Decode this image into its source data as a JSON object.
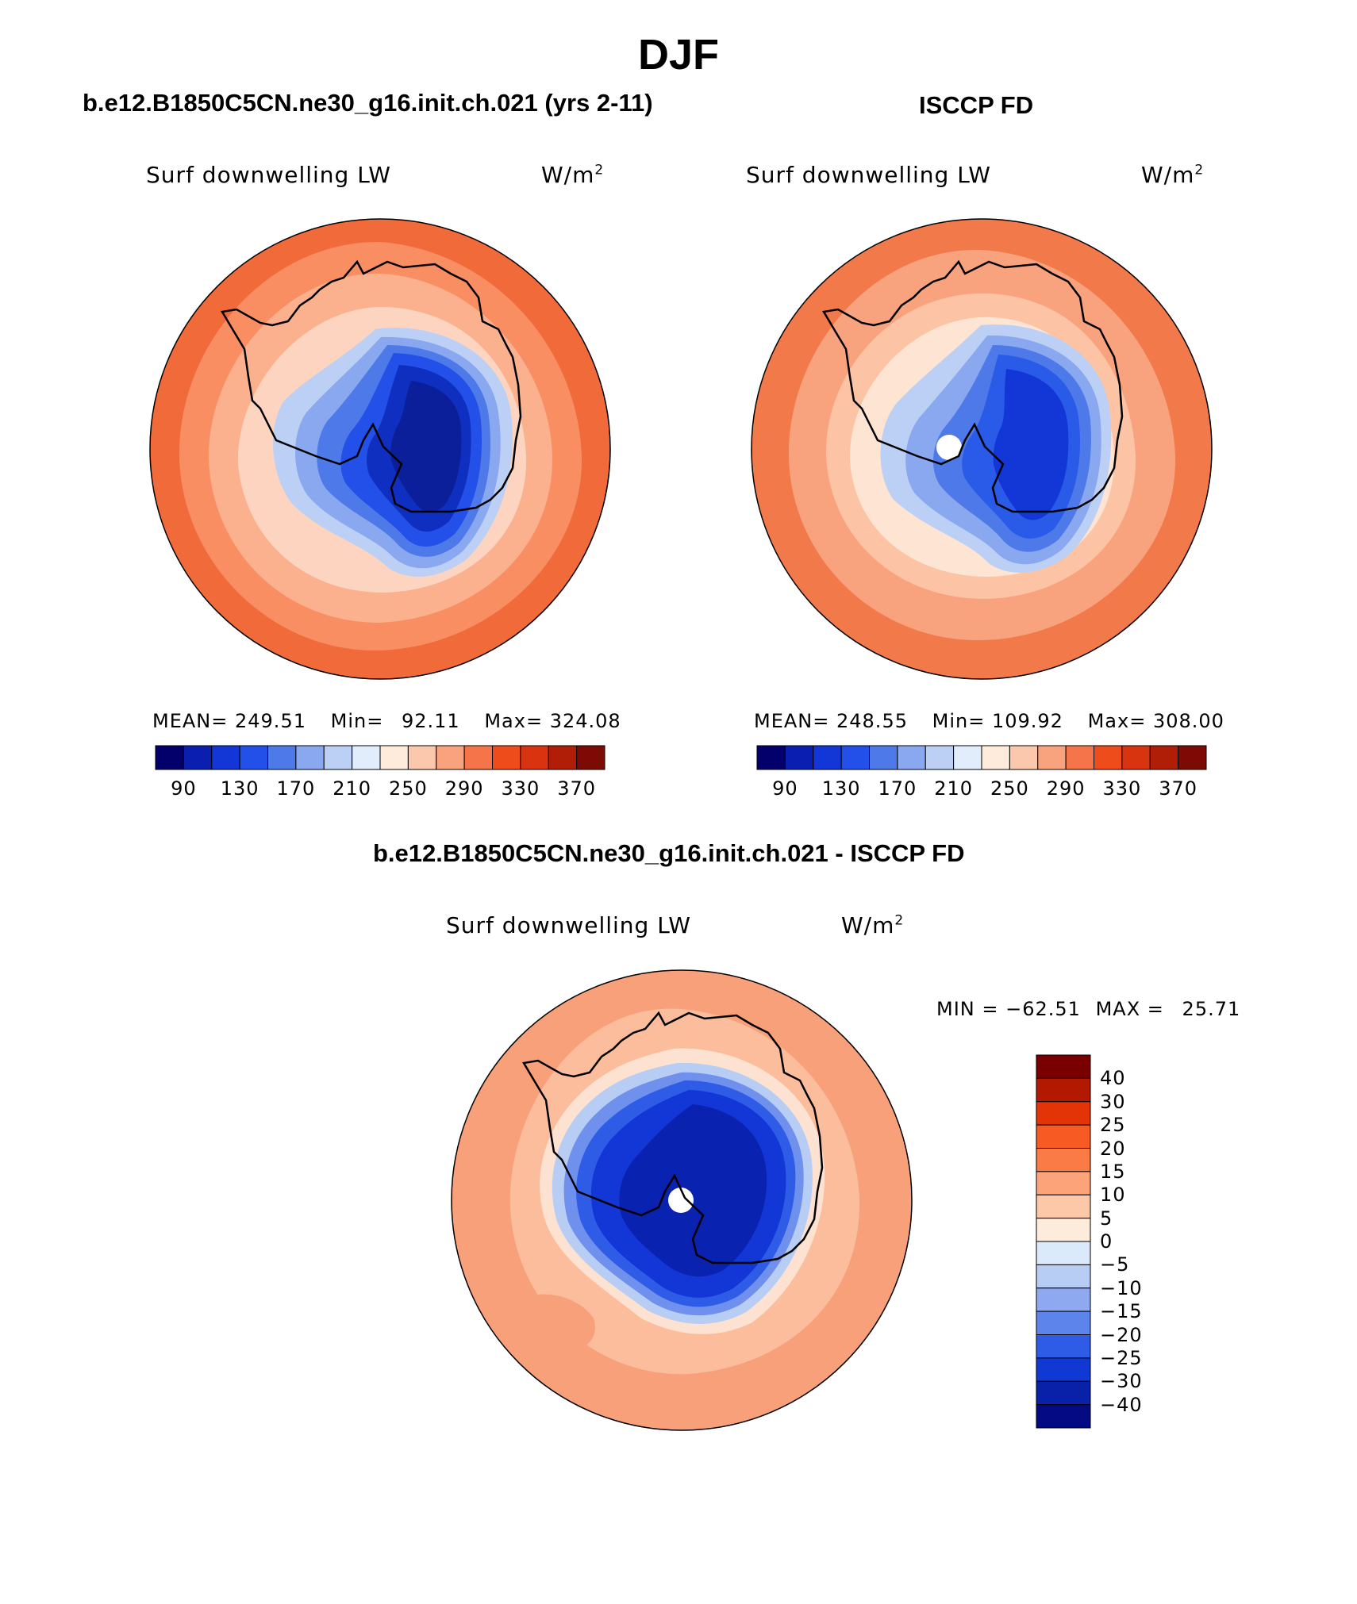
{
  "page": {
    "season": "DJF",
    "left_title": "b.e12.B1850C5CN.ne30_g16.init.ch.021 (yrs 2-11)",
    "right_title": "ISCCP FD",
    "diff_title": "b.e12.B1850C5CN.ne30_g16.init.ch.021 - ISCCP FD"
  },
  "panels": {
    "left": {
      "variable": "Surf downwelling LW",
      "units_base": "W/m",
      "units_exp": "2",
      "stats": {
        "mean_label": "MEAN=",
        "mean": "249.51",
        "min_label": "Min=",
        "min": "92.11",
        "max_label": "Max=",
        "max": "324.08"
      }
    },
    "right": {
      "variable": "Surf downwelling LW",
      "units_base": "W/m",
      "units_exp": "2",
      "stats": {
        "mean_label": "MEAN=",
        "mean": "248.55",
        "min_label": "Min=",
        "min": "109.92",
        "max_label": "Max=",
        "max": "308.00"
      }
    },
    "diff": {
      "variable": "Surf downwelling LW",
      "units_base": "W/m",
      "units_exp": "2",
      "minmax": {
        "min_label": "MIN =",
        "min": "−62.51",
        "max_label": "MAX =",
        "max": "25.71"
      }
    }
  },
  "colorbars": {
    "abs_colors": [
      "#03006c",
      "#0a1fb0",
      "#1237d6",
      "#2350e8",
      "#4e79e8",
      "#8aa8f0",
      "#bcd0f5",
      "#e1edfb",
      "#feebdc",
      "#fcc8ad",
      "#f9a27e",
      "#f5744a",
      "#ef4c1c",
      "#d8340f",
      "#b01e08",
      "#7e0a05"
    ],
    "abs_ticks": [
      "90",
      "130",
      "170",
      "210",
      "250",
      "290",
      "330",
      "370"
    ],
    "diff_colors": [
      "#7a0000",
      "#b31800",
      "#e33408",
      "#f75a22",
      "#fa7b45",
      "#fca37a",
      "#fcc8a7",
      "#fdebdc",
      "#dbeafb",
      "#b7cdf4",
      "#8ea9ef",
      "#5d84eb",
      "#2e5ce7",
      "#1038d3",
      "#0920a9",
      "#030a82"
    ],
    "diff_ticks": [
      "40",
      "30",
      "25",
      "20",
      "15",
      "10",
      "5",
      "0",
      "−5",
      "−10",
      "−15",
      "−20",
      "−25",
      "−30",
      "−40"
    ]
  },
  "maps": {
    "left": {
      "colors": [
        "#f06a3a",
        "#fa8e63",
        "#fbb08e",
        "#fdd4bf",
        "#bcd0f5",
        "#8aa8f0",
        "#4e79e8",
        "#2350e8",
        "#0f2fc0",
        "#0a1f99"
      ]
    },
    "right": {
      "colors": [
        "#f2794a",
        "#f9a27e",
        "#fcc3a5",
        "#fde4d3",
        "#bcd0f5",
        "#8aa8f0",
        "#4e79e8",
        "#2a5ae8",
        "#1237d6"
      ]
    },
    "diff": {
      "colors": [
        "#f8a07a",
        "#fbbd9c",
        "#fde2d1",
        "#b7cdf4",
        "#6f90ec",
        "#2e5ce7",
        "#1237d6",
        "#0a22b0"
      ]
    }
  }
}
